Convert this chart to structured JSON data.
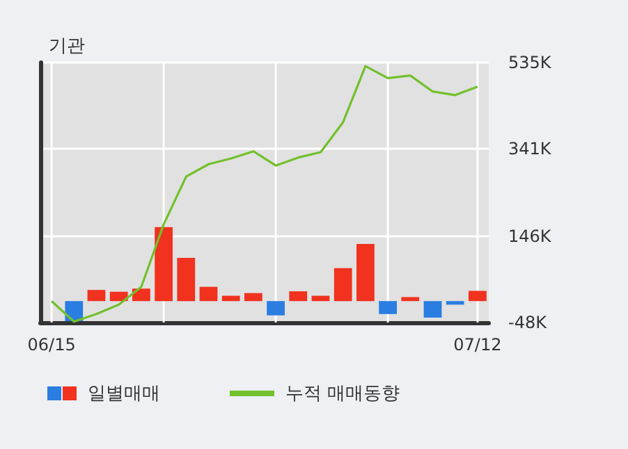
{
  "chart_data": {
    "type": "bar",
    "title": "기관",
    "categories": [
      "06/15",
      null,
      null,
      null,
      null,
      null,
      null,
      null,
      null,
      null,
      null,
      null,
      null,
      null,
      null,
      null,
      null,
      null,
      null,
      "07/12"
    ],
    "series": [
      {
        "name": "일별매매",
        "values": [
          0,
          -45,
          25,
          21,
          28,
          166,
          97,
          32,
          12,
          18,
          -32,
          22,
          12,
          74,
          128,
          -29,
          9,
          -37,
          -8,
          23
        ],
        "colors": [
          "#f0321e",
          "#2a7de1",
          "#f0321e",
          "#f0321e",
          "#f0321e",
          "#f0321e",
          "#f0321e",
          "#f0321e",
          "#f0321e",
          "#f0321e",
          "#2a7de1",
          "#f0321e",
          "#f0321e",
          "#f0321e",
          "#f0321e",
          "#2a7de1",
          "#f0321e",
          "#2a7de1",
          "#2a7de1",
          "#f0321e"
        ]
      },
      {
        "name": "누적 매매동향",
        "type": "line",
        "color": "#72c02c",
        "values": [
          0,
          -46,
          -29,
          -8,
          32,
          172,
          279,
          307,
          320,
          336,
          304,
          322,
          334,
          401,
          527,
          500,
          506,
          470,
          462,
          481
        ]
      }
    ],
    "ylim": [
      -48,
      535
    ],
    "yticks": [
      {
        "value": -48,
        "label": "-48K"
      },
      {
        "value": 146,
        "label": "146K"
      },
      {
        "value": 341,
        "label": "341K"
      },
      {
        "value": 535,
        "label": "535K"
      }
    ],
    "grid": true,
    "legend": "bottom",
    "marker": "none",
    "line_style": "solid"
  }
}
